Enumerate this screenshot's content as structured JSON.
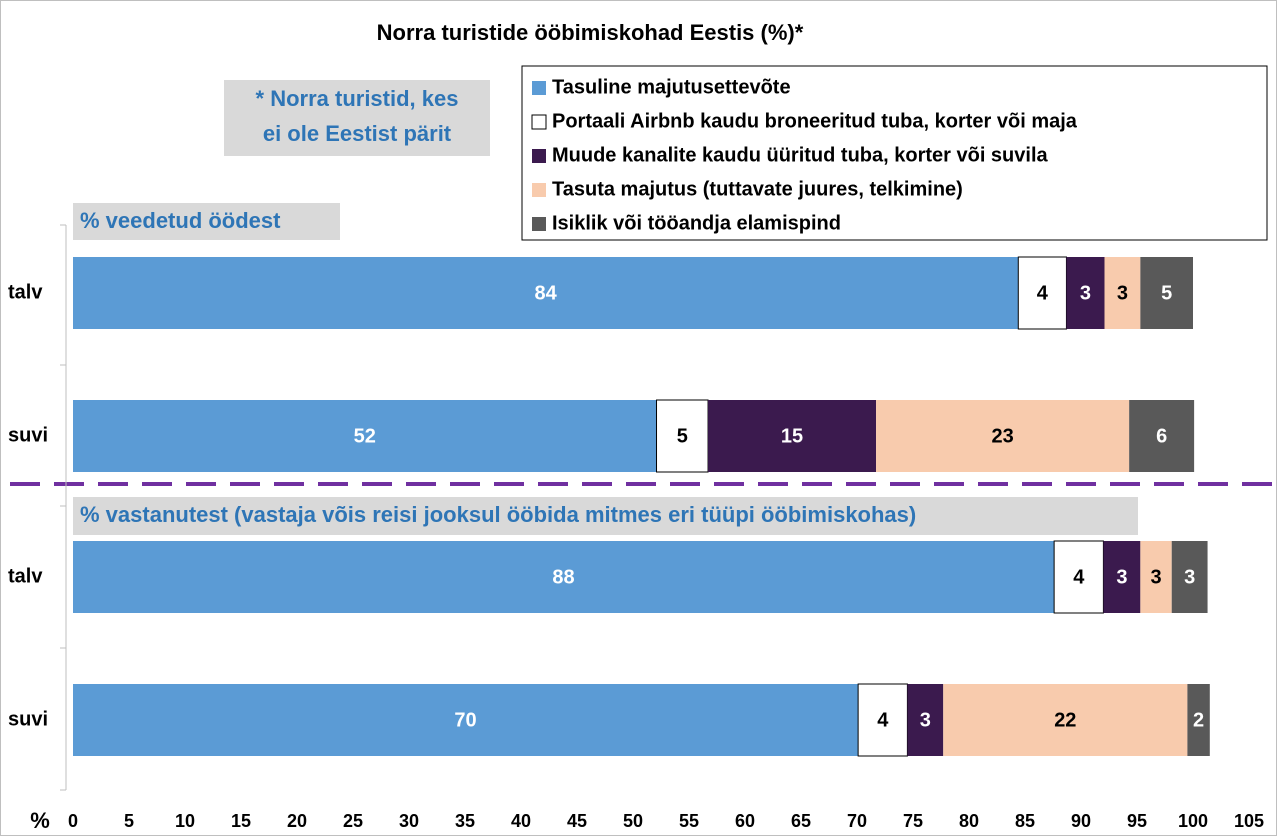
{
  "chart_data": {
    "type": "bar",
    "orientation": "horizontal",
    "stacked": true,
    "title": "Norra turistide ööbimiskohad Eestis (%)*",
    "note": [
      "* Norra turistid, kes",
      "ei ole Eestist pärit"
    ],
    "group_labels": [
      "% veedetud öödest",
      "% vastanutest (vastaja võis reisi jooksul ööbida mitmes eri tüüpi ööbimiskohas)"
    ],
    "categories": [
      "talv",
      "suvi",
      "talv",
      "suvi"
    ],
    "x_label": "%",
    "xlim": [
      0,
      105
    ],
    "xticks": [
      0,
      5,
      10,
      15,
      20,
      25,
      30,
      35,
      40,
      45,
      50,
      55,
      60,
      65,
      70,
      75,
      80,
      85,
      90,
      95,
      100,
      105
    ],
    "legend": "top-right",
    "series": [
      {
        "name": "Tasuline majutusettevõte",
        "color": "#5b9bd5",
        "values": [
          84.4,
          52.1,
          87.6,
          70.1
        ],
        "value_labels": [
          "84",
          "52",
          "88",
          "70"
        ]
      },
      {
        "name": "Portaali Airbnb kaudu broneeritud tuba, korter või maja",
        "color": "#ffffff",
        "values": [
          4.3,
          4.6,
          4.4,
          4.4
        ],
        "value_labels": [
          "4",
          "5",
          "4",
          "4"
        ]
      },
      {
        "name": "Muude kanalite kaudu üüritud tuba, korter või suvila",
        "color": "#3b1a4e",
        "values": [
          3.4,
          15.0,
          3.3,
          3.2
        ],
        "value_labels": [
          "3",
          "15",
          "3",
          "3"
        ]
      },
      {
        "name": "Tasuta majutus (tuttavate juures, telkimine)",
        "color": "#f8cbad",
        "values": [
          3.2,
          22.6,
          2.8,
          21.8
        ],
        "value_labels": [
          "3",
          "23",
          "3",
          "22"
        ]
      },
      {
        "name": "Isiklik või tööandja elamispind",
        "color": "#595959",
        "values": [
          4.7,
          5.8,
          3.2,
          2.0
        ],
        "value_labels": [
          "5",
          "6",
          "3",
          "2"
        ]
      }
    ]
  }
}
